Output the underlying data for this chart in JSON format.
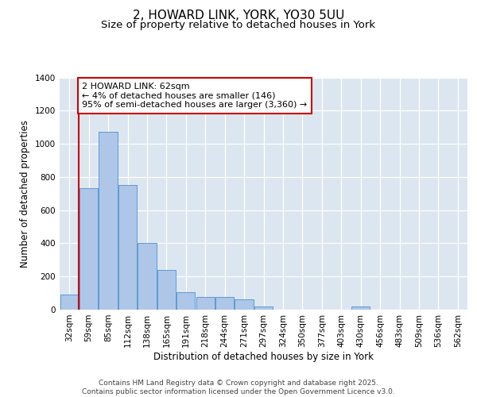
{
  "title": "2, HOWARD LINK, YORK, YO30 5UU",
  "subtitle": "Size of property relative to detached houses in York",
  "xlabel": "Distribution of detached houses by size in York",
  "ylabel": "Number of detached properties",
  "categories": [
    "32sqm",
    "59sqm",
    "85sqm",
    "112sqm",
    "138sqm",
    "165sqm",
    "191sqm",
    "218sqm",
    "244sqm",
    "271sqm",
    "297sqm",
    "324sqm",
    "350sqm",
    "377sqm",
    "403sqm",
    "430sqm",
    "456sqm",
    "483sqm",
    "509sqm",
    "536sqm",
    "562sqm"
  ],
  "values": [
    90,
    730,
    1070,
    750,
    400,
    240,
    105,
    75,
    75,
    60,
    20,
    0,
    0,
    0,
    0,
    20,
    0,
    0,
    0,
    0,
    0
  ],
  "bar_color": "#aec6e8",
  "bar_edge_color": "#5b9bd5",
  "bg_color": "#dce6f0",
  "grid_color": "#ffffff",
  "annotation_text": "2 HOWARD LINK: 62sqm\n← 4% of detached houses are smaller (146)\n95% of semi-detached houses are larger (3,360) →",
  "annotation_box_color": "#ffffff",
  "annotation_box_edge": "#cc0000",
  "vline_color": "#cc0000",
  "ylim": [
    0,
    1400
  ],
  "yticks": [
    0,
    200,
    400,
    600,
    800,
    1000,
    1200,
    1400
  ],
  "footer_line1": "Contains HM Land Registry data © Crown copyright and database right 2025.",
  "footer_line2": "Contains public sector information licensed under the Open Government Licence v3.0.",
  "title_fontsize": 11,
  "subtitle_fontsize": 9.5,
  "axis_label_fontsize": 8.5,
  "tick_fontsize": 7.5,
  "annotation_fontsize": 8,
  "footer_fontsize": 6.5
}
